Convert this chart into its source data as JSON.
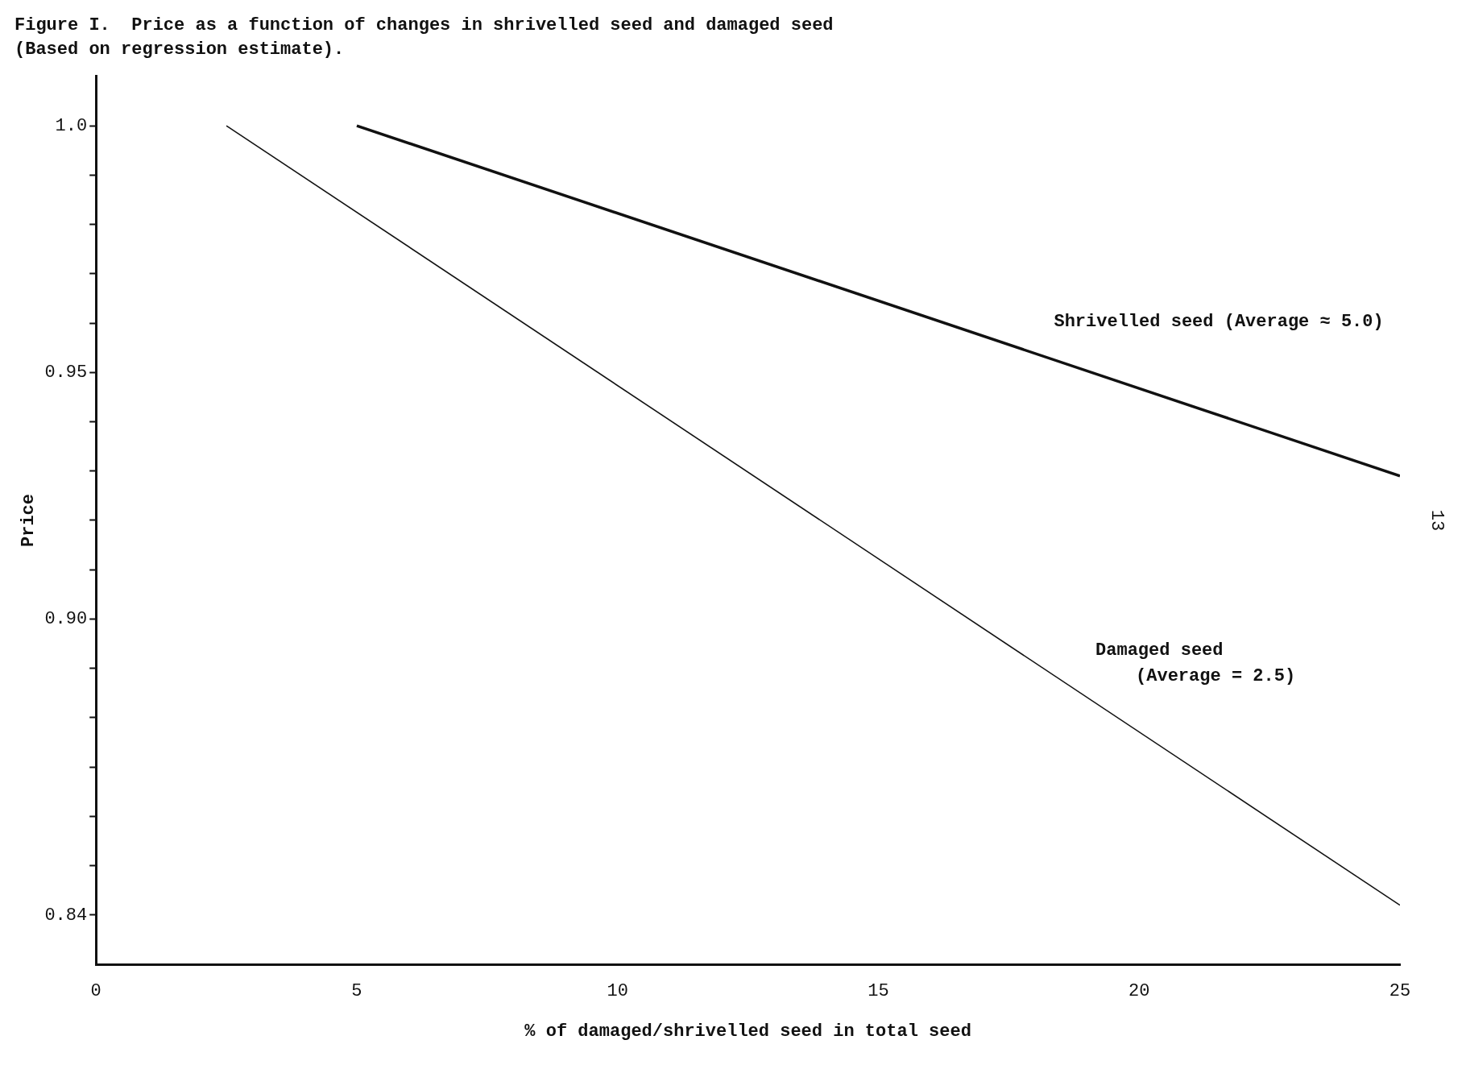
{
  "chart_data": {
    "type": "line",
    "title": "Figure I.  Price as a function of changes in shrivelled seed and damaged seed",
    "subtitle": "(Based on regression estimate).",
    "xlabel": "% of damaged/shrivelled seed in total seed",
    "ylabel": "Price",
    "xlim": [
      0,
      25
    ],
    "xticks": [
      0,
      5,
      10,
      15,
      20,
      25
    ],
    "ylim": [
      0.83,
      1.01
    ],
    "yticks": [
      {
        "value": 1.0,
        "label": "1.0"
      },
      {
        "value": 0.99,
        "label": null
      },
      {
        "value": 0.98,
        "label": null
      },
      {
        "value": 0.97,
        "label": null
      },
      {
        "value": 0.96,
        "label": null
      },
      {
        "value": 0.95,
        "label": "0.95"
      },
      {
        "value": 0.94,
        "label": null
      },
      {
        "value": 0.93,
        "label": null
      },
      {
        "value": 0.92,
        "label": null
      },
      {
        "value": 0.91,
        "label": null
      },
      {
        "value": 0.9,
        "label": "0.90"
      },
      {
        "value": 0.89,
        "label": null
      },
      {
        "value": 0.88,
        "label": null
      },
      {
        "value": 0.87,
        "label": null
      },
      {
        "value": 0.86,
        "label": null
      },
      {
        "value": 0.85,
        "label": null
      },
      {
        "value": 0.84,
        "label": "0.84"
      }
    ],
    "legend": false,
    "marker": "none",
    "line_style": "solid",
    "series": [
      {
        "name": "Shrivelled seed (Average ≈ 5.0)",
        "color": "#111111",
        "x": [
          5.0,
          25
        ],
        "values": [
          1.0,
          0.929
        ]
      },
      {
        "name": "Damaged seed (Average = 2.5)",
        "color": "#111111",
        "x": [
          2.5,
          25
        ],
        "values": [
          1.0,
          0.842
        ]
      }
    ],
    "annotations": [
      "13"
    ]
  }
}
